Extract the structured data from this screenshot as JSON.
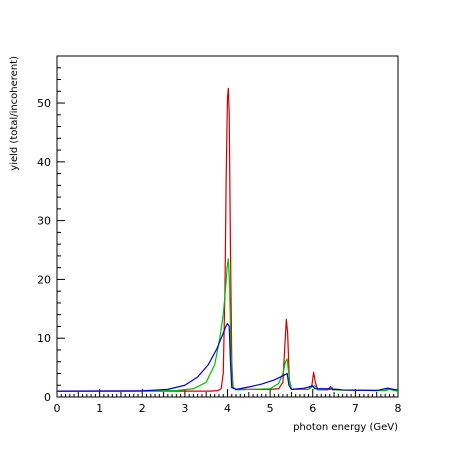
{
  "chart_data": {
    "type": "line",
    "title": "",
    "xlabel": "photon energy (GeV)",
    "ylabel": "yield (total/incoherent)",
    "xlim": [
      0,
      8
    ],
    "ylim": [
      0,
      58
    ],
    "x_ticks": [
      "0",
      "1",
      "2",
      "3",
      "4",
      "5",
      "6",
      "7",
      "8"
    ],
    "y_ticks": [
      "0",
      "10",
      "20",
      "30",
      "40",
      "50"
    ],
    "grid": false,
    "legend": "none",
    "series": [
      {
        "color": "#d00000",
        "points": [
          [
            0,
            1.0
          ],
          [
            3.6,
            1.0
          ],
          [
            3.78,
            1.1
          ],
          [
            3.85,
            1.4
          ],
          [
            3.9,
            4
          ],
          [
            3.94,
            18
          ],
          [
            3.97,
            38
          ],
          [
            4.0,
            51
          ],
          [
            4.02,
            52.5
          ],
          [
            4.04,
            48
          ],
          [
            4.07,
            25
          ],
          [
            4.1,
            6
          ],
          [
            4.13,
            1.6
          ],
          [
            4.2,
            1.3
          ],
          [
            5.0,
            1.3
          ],
          [
            5.2,
            1.4
          ],
          [
            5.3,
            2.5
          ],
          [
            5.34,
            8
          ],
          [
            5.38,
            13.2
          ],
          [
            5.41,
            11
          ],
          [
            5.45,
            3
          ],
          [
            5.5,
            1.3
          ],
          [
            5.9,
            1.3
          ],
          [
            5.98,
            2
          ],
          [
            6.02,
            4.2
          ],
          [
            6.06,
            2.5
          ],
          [
            6.12,
            1.2
          ],
          [
            6.35,
            1.2
          ],
          [
            6.42,
            1.8
          ],
          [
            6.47,
            1.2
          ],
          [
            7.7,
            1.1
          ],
          [
            7.78,
            1.5
          ],
          [
            7.85,
            1.2
          ],
          [
            8.0,
            1.0
          ]
        ]
      },
      {
        "color": "#00c000",
        "points": [
          [
            0,
            1.0
          ],
          [
            2.0,
            1.0
          ],
          [
            2.8,
            1.1
          ],
          [
            3.2,
            1.4
          ],
          [
            3.5,
            2.5
          ],
          [
            3.7,
            5.5
          ],
          [
            3.82,
            10
          ],
          [
            3.9,
            14
          ],
          [
            3.95,
            18
          ],
          [
            3.99,
            22
          ],
          [
            4.02,
            23.5
          ],
          [
            4.05,
            19
          ],
          [
            4.08,
            8
          ],
          [
            4.12,
            1.8
          ],
          [
            4.2,
            1.2
          ],
          [
            5.0,
            1.4
          ],
          [
            5.2,
            2.3
          ],
          [
            5.3,
            4
          ],
          [
            5.36,
            6
          ],
          [
            5.4,
            6.5
          ],
          [
            5.45,
            3
          ],
          [
            5.5,
            1.3
          ],
          [
            5.9,
            1.3
          ],
          [
            6.0,
            1.8
          ],
          [
            6.05,
            1.9
          ],
          [
            6.12,
            1.2
          ],
          [
            6.4,
            1.3
          ],
          [
            6.45,
            1.6
          ],
          [
            6.5,
            1.2
          ],
          [
            7.7,
            1.1
          ],
          [
            7.8,
            1.3
          ],
          [
            8.0,
            1.0
          ]
        ]
      },
      {
        "color": "#0000c8",
        "points": [
          [
            0,
            1.0
          ],
          [
            2.0,
            1.05
          ],
          [
            2.6,
            1.3
          ],
          [
            3.0,
            2.0
          ],
          [
            3.3,
            3.4
          ],
          [
            3.55,
            5.5
          ],
          [
            3.75,
            8.2
          ],
          [
            3.88,
            10.5
          ],
          [
            3.96,
            12
          ],
          [
            4.0,
            12.5
          ],
          [
            4.04,
            12
          ],
          [
            4.07,
            6
          ],
          [
            4.1,
            1.6
          ],
          [
            4.2,
            1.3
          ],
          [
            4.5,
            1.7
          ],
          [
            4.8,
            2.2
          ],
          [
            5.1,
            2.9
          ],
          [
            5.3,
            3.6
          ],
          [
            5.4,
            4.0
          ],
          [
            5.44,
            2
          ],
          [
            5.5,
            1.3
          ],
          [
            5.8,
            1.5
          ],
          [
            6.0,
            1.9
          ],
          [
            6.05,
            1.4
          ],
          [
            6.3,
            1.4
          ],
          [
            6.6,
            1.3
          ],
          [
            6.7,
            1.2
          ],
          [
            7.5,
            1.1
          ],
          [
            7.75,
            1.5
          ],
          [
            7.9,
            1.3
          ],
          [
            8.0,
            1.2
          ]
        ]
      }
    ]
  }
}
